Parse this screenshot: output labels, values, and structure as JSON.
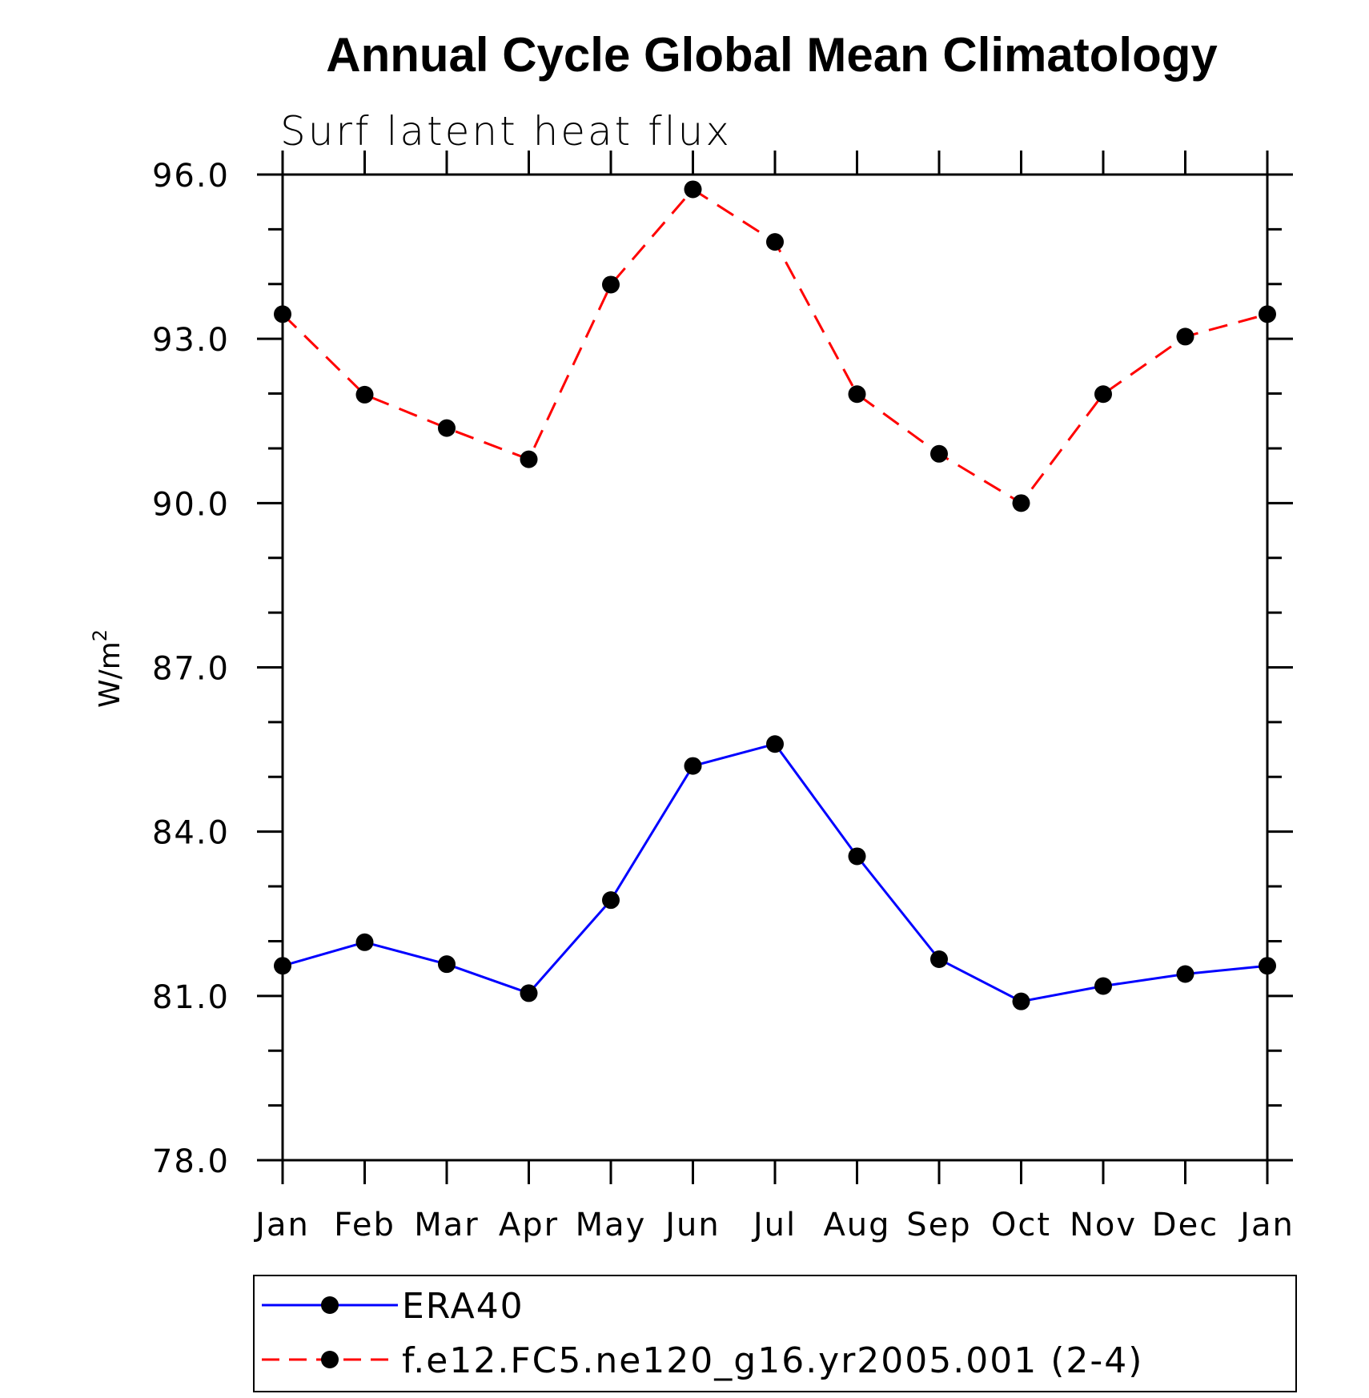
{
  "chart_data": {
    "type": "line",
    "title": "Annual Cycle Global Mean Climatology",
    "subtitle": "Surf latent heat flux",
    "ylabel": "W/m",
    "ylabel_superscript": "2",
    "xlabel": "",
    "categories": [
      "Jan",
      "Feb",
      "Mar",
      "Apr",
      "May",
      "Jun",
      "Jul",
      "Aug",
      "Sep",
      "Oct",
      "Nov",
      "Dec",
      "Jan"
    ],
    "ylim": [
      78.0,
      96.0
    ],
    "yticks": [
      "78.0",
      "81.0",
      "84.0",
      "87.0",
      "90.0",
      "93.0",
      "96.0"
    ],
    "grid": false,
    "legend_position": "bottom",
    "series": [
      {
        "name": "ERA40",
        "color": "#0000ff",
        "line_style": "solid",
        "marker": "filled-circle",
        "values": [
          81.55,
          81.98,
          81.58,
          81.05,
          82.75,
          85.2,
          85.6,
          83.55,
          81.67,
          80.9,
          81.18,
          81.4,
          81.55
        ]
      },
      {
        "name": "f.e12.FC5.ne120_g16.yr2005.001 (2-4)",
        "color": "#ff0000",
        "line_style": "dashed",
        "marker": "filled-circle",
        "values": [
          93.45,
          91.98,
          91.37,
          90.8,
          93.99,
          95.73,
          94.77,
          91.99,
          90.9,
          90.0,
          91.99,
          93.04,
          93.45
        ]
      }
    ]
  }
}
